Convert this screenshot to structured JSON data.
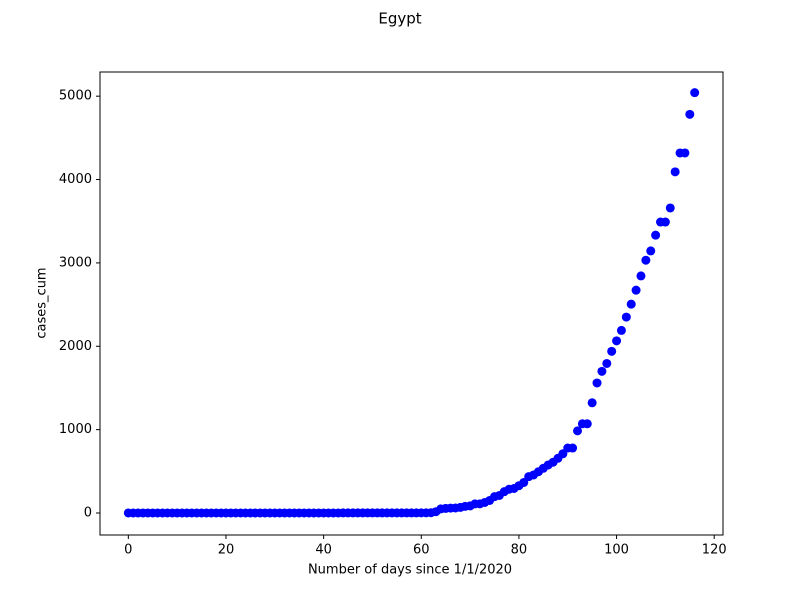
{
  "chart_data": {
    "type": "scatter",
    "title": "Egypt",
    "xlabel": "Number of days since 1/1/2020",
    "ylabel": "cases_cum",
    "x": [
      0,
      1,
      2,
      3,
      4,
      5,
      6,
      7,
      8,
      9,
      10,
      11,
      12,
      13,
      14,
      15,
      16,
      17,
      18,
      19,
      20,
      21,
      22,
      23,
      24,
      25,
      26,
      27,
      28,
      29,
      30,
      31,
      32,
      33,
      34,
      35,
      36,
      37,
      38,
      39,
      40,
      41,
      42,
      43,
      44,
      45,
      46,
      47,
      48,
      49,
      50,
      51,
      52,
      53,
      54,
      55,
      56,
      57,
      58,
      59,
      60,
      61,
      62,
      63,
      64,
      65,
      66,
      67,
      68,
      69,
      70,
      71,
      72,
      73,
      74,
      75,
      76,
      77,
      78,
      79,
      80,
      81,
      82,
      83,
      84,
      85,
      86,
      87,
      88,
      89,
      90,
      91,
      92,
      93,
      94,
      95,
      96,
      97,
      98,
      99,
      100,
      101,
      102,
      103,
      104,
      105,
      106,
      107,
      108,
      109,
      110,
      111,
      112,
      113,
      114,
      115,
      116
    ],
    "values": [
      0,
      0,
      0,
      0,
      0,
      0,
      0,
      0,
      0,
      0,
      0,
      0,
      0,
      0,
      0,
      0,
      0,
      0,
      0,
      0,
      0,
      0,
      0,
      0,
      0,
      0,
      0,
      0,
      0,
      0,
      0,
      0,
      0,
      0,
      0,
      0,
      0,
      0,
      0,
      0,
      0,
      0,
      0,
      0,
      1,
      1,
      1,
      1,
      1,
      1,
      1,
      1,
      1,
      1,
      1,
      1,
      1,
      1,
      1,
      1,
      2,
      2,
      3,
      15,
      49,
      55,
      59,
      60,
      67,
      80,
      85,
      109,
      110,
      126,
      150,
      196,
      210,
      256,
      285,
      294,
      327,
      366,
      436,
      456,
      495,
      536,
      576,
      609,
      656,
      710,
      779,
      779,
      985,
      1070,
      1070,
      1322,
      1560,
      1699,
      1794,
      1939,
      2065,
      2190,
      2350,
      2505,
      2673,
      2844,
      3032,
      3144,
      3333,
      3490,
      3490,
      3659,
      4092,
      4319,
      4319,
      4782,
      5042
    ],
    "color": "#0000ff",
    "xlim": [
      -5.8,
      121.8
    ],
    "ylim": [
      -264,
      5290
    ],
    "xticks": [
      0,
      20,
      40,
      60,
      80,
      100,
      120
    ],
    "yticks": [
      0,
      1000,
      2000,
      3000,
      4000,
      5000
    ],
    "grid": false
  }
}
